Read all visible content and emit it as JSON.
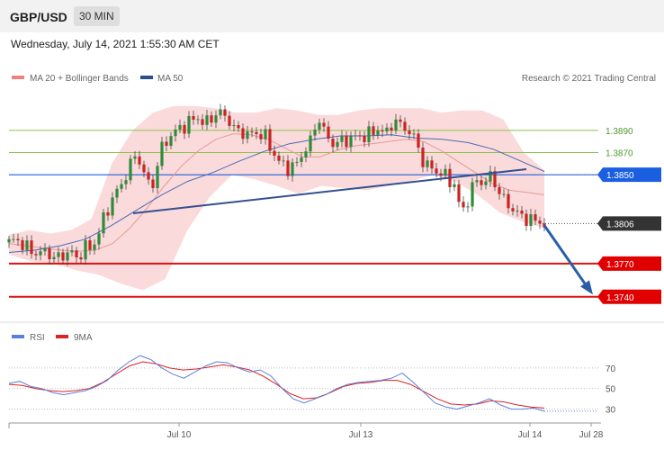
{
  "header": {
    "symbol": "GBP/USD",
    "interval": "30 MIN",
    "datetime": "Wednesday, July 14, 2021 1:55:30 AM CET"
  },
  "legend": {
    "ma20_label": "MA 20 + Bollinger Bands",
    "ma50_label": "MA 50",
    "credit": "Research © 2021 Trading Central",
    "rsi_label": "RSI",
    "rsi_ma_label": "9MA"
  },
  "colors": {
    "candle_up": "#2e8b3a",
    "candle_down": "#cc2222",
    "bollinger_fill": "#f9d4d4",
    "ma20": "#e89a9a",
    "ma50": "#4a6ab8",
    "trendline": "#34508f",
    "support": "#dd1111",
    "target": "#2a5fa8",
    "rsi": "#5b7fdd",
    "rsi_ma": "#dd2222"
  },
  "chart_data": [
    {
      "type": "candlestick",
      "series_names": [
        "MA 20 + Bollinger Bands",
        "MA 50"
      ],
      "ylim": [
        1.3722,
        1.3928
      ],
      "x_ticks": [
        "Jul 10",
        "Jul 13",
        "Jul 14",
        "Jul 28"
      ],
      "current_price": "1.3806",
      "levels": [
        {
          "label": "1.3890",
          "value": 1.389,
          "color": "#8bc34a"
        },
        {
          "label": "1.3870",
          "value": 1.387,
          "color": "#8bc34a"
        },
        {
          "label": "1.3850",
          "value": 1.385,
          "color": "#1a5fe0"
        },
        {
          "label": "1.3770",
          "value": 1.377,
          "color": "#dd1111"
        },
        {
          "label": "1.3740",
          "value": 1.374,
          "color": "#dd1111"
        }
      ],
      "price_path": [
        1.3789,
        1.3792,
        1.3786,
        1.3781,
        1.3779,
        1.3781,
        1.3775,
        1.3776,
        1.3782,
        1.3774,
        1.3785,
        1.3783,
        1.38,
        1.3818,
        1.3832,
        1.3842,
        1.3858,
        1.387,
        1.3848,
        1.3838,
        1.387,
        1.3882,
        1.3889,
        1.3893,
        1.3898,
        1.3902,
        1.3895,
        1.3903,
        1.3906,
        1.3901,
        1.389,
        1.3888,
        1.3886,
        1.3888,
        1.3884,
        1.387,
        1.386,
        1.3856,
        1.3858,
        1.387,
        1.388,
        1.3903,
        1.3885,
        1.3878,
        1.388,
        1.3882,
        1.3884,
        1.3885,
        1.3887,
        1.3892,
        1.3886,
        1.39,
        1.3894,
        1.389,
        1.388,
        1.386,
        1.3856,
        1.3852,
        1.3848,
        1.3842,
        1.3815,
        1.383,
        1.3846,
        1.3842,
        1.385,
        1.3834,
        1.3824,
        1.3818,
        1.3812,
        1.381,
        1.3808,
        1.3806
      ],
      "ma20": [
        1.3788,
        1.3786,
        1.3784,
        1.3782,
        1.3781,
        1.3782,
        1.3788,
        1.3802,
        1.382,
        1.384,
        1.3858,
        1.3872,
        1.3882,
        1.3887,
        1.3886,
        1.3882,
        1.3874,
        1.3866,
        1.3866,
        1.3872,
        1.3876,
        1.3878,
        1.388,
        1.3882,
        1.388,
        1.3872,
        1.3862,
        1.3852,
        1.3842,
        1.3836,
        1.3834,
        1.3832
      ],
      "ma50": [
        1.378,
        1.3782,
        1.3786,
        1.3792,
        1.3804,
        1.3818,
        1.3832,
        1.3844,
        1.3852,
        1.3862,
        1.3871,
        1.3878,
        1.3882,
        1.3885,
        1.3885,
        1.3886,
        1.3883,
        1.3882,
        1.3879,
        1.3873,
        1.3863,
        1.3853
      ],
      "bb_upper": [
        1.3796,
        1.38,
        1.3797,
        1.38,
        1.381,
        1.386,
        1.389,
        1.3906,
        1.3912,
        1.3912,
        1.391,
        1.3906,
        1.3906,
        1.391,
        1.3908,
        1.3904,
        1.3904,
        1.3908,
        1.391,
        1.391,
        1.391,
        1.3906,
        1.3908,
        1.3908,
        1.39,
        1.387,
        1.3854
      ],
      "bb_lower": [
        1.3778,
        1.3772,
        1.377,
        1.3764,
        1.376,
        1.3752,
        1.3746,
        1.3756,
        1.38,
        1.383,
        1.385,
        1.3846,
        1.384,
        1.3833,
        1.384,
        1.3838,
        1.3836,
        1.384,
        1.3844,
        1.385,
        1.3844,
        1.3832,
        1.3816,
        1.3808,
        1.3802
      ]
    },
    {
      "type": "line",
      "series_names": [
        "RSI",
        "9MA"
      ],
      "ylim": [
        20,
        90
      ],
      "y_ticks": [
        "70",
        "50",
        "30"
      ],
      "rsi": [
        55,
        57,
        52,
        50,
        46,
        44,
        46,
        48,
        52,
        58,
        68,
        76,
        82,
        78,
        70,
        64,
        60,
        66,
        72,
        76,
        75,
        70,
        66,
        68,
        62,
        50,
        40,
        36,
        40,
        44,
        50,
        54,
        56,
        57,
        58,
        60,
        65,
        56,
        46,
        36,
        32,
        30,
        33,
        36,
        40,
        34,
        30,
        30,
        31,
        28
      ],
      "rsi_ma": [
        54,
        53,
        50,
        48,
        47,
        48,
        50,
        56,
        64,
        72,
        76,
        74,
        70,
        68,
        69,
        71,
        73,
        71,
        68,
        62,
        54,
        45,
        40,
        41,
        46,
        52,
        55,
        56,
        58,
        58,
        54,
        47,
        40,
        35,
        34,
        35,
        38,
        37,
        34,
        32,
        31
      ]
    }
  ]
}
